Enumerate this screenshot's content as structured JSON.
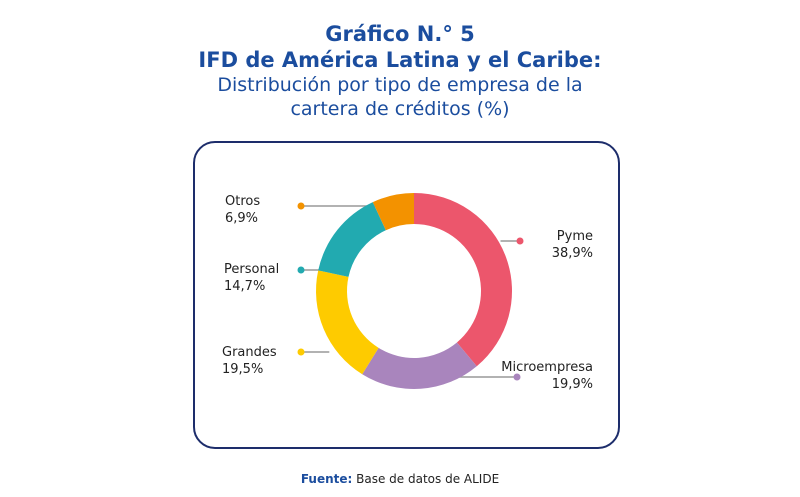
{
  "title": {
    "line1": "Gráfico N.° 5",
    "line2": "IFD de América Latina y el Caribe:",
    "line3": "Distribución por tipo de empresa de la",
    "line4": "cartera de créditos (%)"
  },
  "chart_data": {
    "type": "pie",
    "title": "Gráfico N.° 5 IFD de América Latina y el Caribe: Distribución por tipo de empresa de la cartera de créditos (%)",
    "categories": [
      "Pyme",
      "Microempresa",
      "Grandes",
      "Personal",
      "Otros"
    ],
    "values": [
      38.9,
      19.9,
      19.5,
      14.7,
      6.9
    ],
    "value_labels": [
      "38,9%",
      "19,9%",
      "19,5%",
      "14,7%",
      "6,9%"
    ],
    "colors": [
      "#ec566c",
      "#a985bd",
      "#fecb00",
      "#22aab0",
      "#f39200"
    ],
    "style": "donut"
  },
  "source": {
    "label": "Fuente:",
    "text": " Base de datos de ALIDE"
  }
}
